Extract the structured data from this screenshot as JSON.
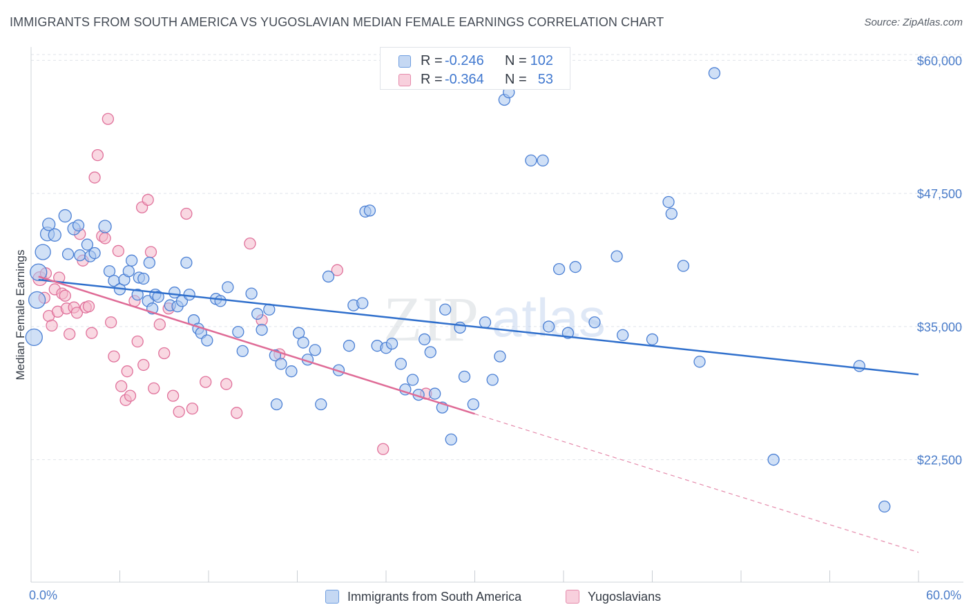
{
  "title": "IMMIGRANTS FROM SOUTH AMERICA VS YUGOSLAVIAN MEDIAN FEMALE EARNINGS CORRELATION CHART",
  "source": "Source: ZipAtlas.com",
  "watermark": {
    "zip": "ZIP",
    "atlas": "atlas"
  },
  "colors": {
    "blue": "#4a7fd4",
    "blue_fill": "#a9c6ee",
    "pink": "#e0709a",
    "pink_fill": "#f4b8cb",
    "grid": "#dfe3ea",
    "tick_label": "#4a7cc9"
  },
  "legend_top": {
    "rows": [
      {
        "r_label": "R = ",
        "r_value": "-0.246",
        "n_label": "N = ",
        "n_value": "102"
      },
      {
        "r_label": "R = ",
        "r_value": "-0.364",
        "n_label": "N = ",
        "n_value": "53"
      }
    ]
  },
  "legend_bottom": [
    "Immigrants from South America",
    "Yugoslavians"
  ],
  "chart_data": {
    "type": "scatter",
    "ylabel": "Median Female Earnings",
    "x_tick_labels": {
      "min": "0.0%",
      "max": "60.0%"
    },
    "xlim": [
      0,
      60
    ],
    "ylim": [
      11000,
      61000
    ],
    "y_ticks": [
      {
        "value": 22500,
        "label": "$22,500"
      },
      {
        "value": 35000,
        "label": "$35,000"
      },
      {
        "value": 47500,
        "label": "$47,500"
      },
      {
        "value": 60000,
        "label": "$60,000"
      }
    ],
    "grid": true,
    "series": [
      {
        "name": "Immigrants from South America",
        "trend": {
          "x": [
            0.5,
            60
          ],
          "y": [
            39400,
            30500
          ]
        },
        "points": [
          [
            0.2,
            34000,
            12
          ],
          [
            0.4,
            37500,
            12
          ],
          [
            0.5,
            40100,
            12
          ],
          [
            0.8,
            42000,
            11
          ],
          [
            1.1,
            43700,
            10
          ],
          [
            1.2,
            44600,
            9
          ],
          [
            1.6,
            43600,
            9
          ],
          [
            2.3,
            45400,
            9
          ],
          [
            2.5,
            41800,
            8
          ],
          [
            2.9,
            44200,
            9
          ],
          [
            3.2,
            44500,
            8
          ],
          [
            3.3,
            41700,
            8
          ],
          [
            3.8,
            42700,
            8
          ],
          [
            4.0,
            41600,
            8
          ],
          [
            4.3,
            41900,
            8
          ],
          [
            5.0,
            44400,
            9
          ],
          [
            5.3,
            40200,
            8
          ],
          [
            5.6,
            39300,
            8
          ],
          [
            6.0,
            38500,
            8
          ],
          [
            6.3,
            39400,
            8
          ],
          [
            6.6,
            40200,
            8
          ],
          [
            6.8,
            41200,
            8
          ],
          [
            7.2,
            38000,
            8
          ],
          [
            7.3,
            39600,
            8
          ],
          [
            7.6,
            39500,
            8
          ],
          [
            7.9,
            37400,
            8
          ],
          [
            8.0,
            41000,
            8
          ],
          [
            8.2,
            36700,
            8
          ],
          [
            8.4,
            38000,
            8
          ],
          [
            8.6,
            37800,
            8
          ],
          [
            9.4,
            37000,
            8
          ],
          [
            9.7,
            38200,
            8
          ],
          [
            9.9,
            36900,
            8
          ],
          [
            10.2,
            37400,
            8
          ],
          [
            10.5,
            41000,
            8
          ],
          [
            10.7,
            38000,
            8
          ],
          [
            11.0,
            35600,
            8
          ],
          [
            11.3,
            34800,
            8
          ],
          [
            11.5,
            34400,
            8
          ],
          [
            11.9,
            33700,
            8
          ],
          [
            12.5,
            37600,
            8
          ],
          [
            12.8,
            37400,
            8
          ],
          [
            13.3,
            38700,
            8
          ],
          [
            14.0,
            34500,
            8
          ],
          [
            14.3,
            32700,
            8
          ],
          [
            14.9,
            38100,
            8
          ],
          [
            15.3,
            36200,
            8
          ],
          [
            15.6,
            34700,
            8
          ],
          [
            16.1,
            36600,
            8
          ],
          [
            16.5,
            32300,
            8
          ],
          [
            16.6,
            27700,
            8
          ],
          [
            16.9,
            31500,
            8
          ],
          [
            17.6,
            30800,
            8
          ],
          [
            18.1,
            34400,
            8
          ],
          [
            18.4,
            33500,
            8
          ],
          [
            18.7,
            31900,
            8
          ],
          [
            19.2,
            32800,
            8
          ],
          [
            19.6,
            27700,
            8
          ],
          [
            20.1,
            39700,
            8
          ],
          [
            20.8,
            30900,
            8
          ],
          [
            21.5,
            33200,
            8
          ],
          [
            21.8,
            37000,
            8
          ],
          [
            22.4,
            37200,
            8
          ],
          [
            22.6,
            45800,
            8
          ],
          [
            22.9,
            45900,
            8
          ],
          [
            23.4,
            33200,
            8
          ],
          [
            24.0,
            33000,
            8
          ],
          [
            24.4,
            33400,
            8
          ],
          [
            25.0,
            31500,
            8
          ],
          [
            25.3,
            29100,
            8
          ],
          [
            25.8,
            30000,
            8
          ],
          [
            26.2,
            28600,
            8
          ],
          [
            26.6,
            33800,
            8
          ],
          [
            27.0,
            32600,
            8
          ],
          [
            27.3,
            28700,
            8
          ],
          [
            27.8,
            27400,
            8
          ],
          [
            28.0,
            36600,
            8
          ],
          [
            28.4,
            24400,
            8
          ],
          [
            29.0,
            34900,
            8
          ],
          [
            29.3,
            30300,
            8
          ],
          [
            29.9,
            27700,
            8
          ],
          [
            30.7,
            35400,
            8
          ],
          [
            31.2,
            30000,
            8
          ],
          [
            31.7,
            32200,
            8
          ],
          [
            32.0,
            56300,
            8
          ],
          [
            32.3,
            57000,
            8
          ],
          [
            33.8,
            50600,
            8
          ],
          [
            34.6,
            50600,
            8
          ],
          [
            35.0,
            35000,
            8
          ],
          [
            35.7,
            40400,
            8
          ],
          [
            36.3,
            34400,
            8
          ],
          [
            36.8,
            40600,
            8
          ],
          [
            38.1,
            35400,
            8
          ],
          [
            39.6,
            41600,
            8
          ],
          [
            40.0,
            34200,
            8
          ],
          [
            42.0,
            33800,
            8
          ],
          [
            43.1,
            46700,
            8
          ],
          [
            43.3,
            45600,
            8
          ],
          [
            44.1,
            40700,
            8
          ],
          [
            45.2,
            31700,
            8
          ],
          [
            46.2,
            58800,
            8
          ],
          [
            50.2,
            22500,
            8
          ],
          [
            57.7,
            18100,
            8
          ],
          [
            56.0,
            31300,
            8
          ]
        ]
      },
      {
        "name": "Yugoslavians",
        "trend": {
          "x": [
            0.5,
            30
          ],
          "y": [
            39700,
            26800
          ]
        },
        "dash": {
          "x": [
            30,
            60
          ],
          "y": [
            26800,
            13800
          ]
        },
        "points": [
          [
            0.6,
            39500,
            10
          ],
          [
            0.9,
            37700,
            8
          ],
          [
            1.0,
            40000,
            8
          ],
          [
            1.2,
            36000,
            8
          ],
          [
            1.4,
            35100,
            8
          ],
          [
            1.6,
            38500,
            8
          ],
          [
            1.8,
            36400,
            8
          ],
          [
            1.9,
            39600,
            8
          ],
          [
            2.1,
            38100,
            8
          ],
          [
            2.3,
            37900,
            8
          ],
          [
            2.4,
            36700,
            8
          ],
          [
            2.6,
            34300,
            8
          ],
          [
            2.9,
            36800,
            8
          ],
          [
            3.1,
            36300,
            8
          ],
          [
            3.3,
            43700,
            8
          ],
          [
            3.5,
            41200,
            8
          ],
          [
            3.7,
            36800,
            8
          ],
          [
            3.9,
            36900,
            8
          ],
          [
            4.1,
            34400,
            8
          ],
          [
            4.3,
            49000,
            8
          ],
          [
            4.5,
            51100,
            8
          ],
          [
            4.8,
            43500,
            8
          ],
          [
            5.0,
            43300,
            8
          ],
          [
            5.2,
            54500,
            8
          ],
          [
            5.4,
            35400,
            8
          ],
          [
            5.6,
            32200,
            8
          ],
          [
            5.9,
            42100,
            8
          ],
          [
            6.1,
            29400,
            8
          ],
          [
            6.4,
            28100,
            8
          ],
          [
            6.5,
            30800,
            8
          ],
          [
            6.7,
            28500,
            8
          ],
          [
            7.0,
            37400,
            8
          ],
          [
            7.2,
            33600,
            8
          ],
          [
            7.5,
            46200,
            8
          ],
          [
            7.6,
            31400,
            8
          ],
          [
            7.9,
            46900,
            8
          ],
          [
            8.1,
            42000,
            8
          ],
          [
            8.3,
            29200,
            8
          ],
          [
            8.7,
            35200,
            8
          ],
          [
            9.0,
            32500,
            8
          ],
          [
            9.3,
            36700,
            8
          ],
          [
            9.6,
            28500,
            8
          ],
          [
            10.0,
            27000,
            8
          ],
          [
            10.5,
            45600,
            8
          ],
          [
            10.9,
            27300,
            8
          ],
          [
            11.8,
            29800,
            8
          ],
          [
            13.2,
            29600,
            8
          ],
          [
            13.9,
            26900,
            8
          ],
          [
            14.8,
            42800,
            8
          ],
          [
            15.6,
            35600,
            8
          ],
          [
            16.8,
            32400,
            8
          ],
          [
            20.7,
            40300,
            8
          ],
          [
            23.8,
            23500,
            8
          ],
          [
            26.7,
            28700,
            8
          ]
        ]
      }
    ]
  }
}
